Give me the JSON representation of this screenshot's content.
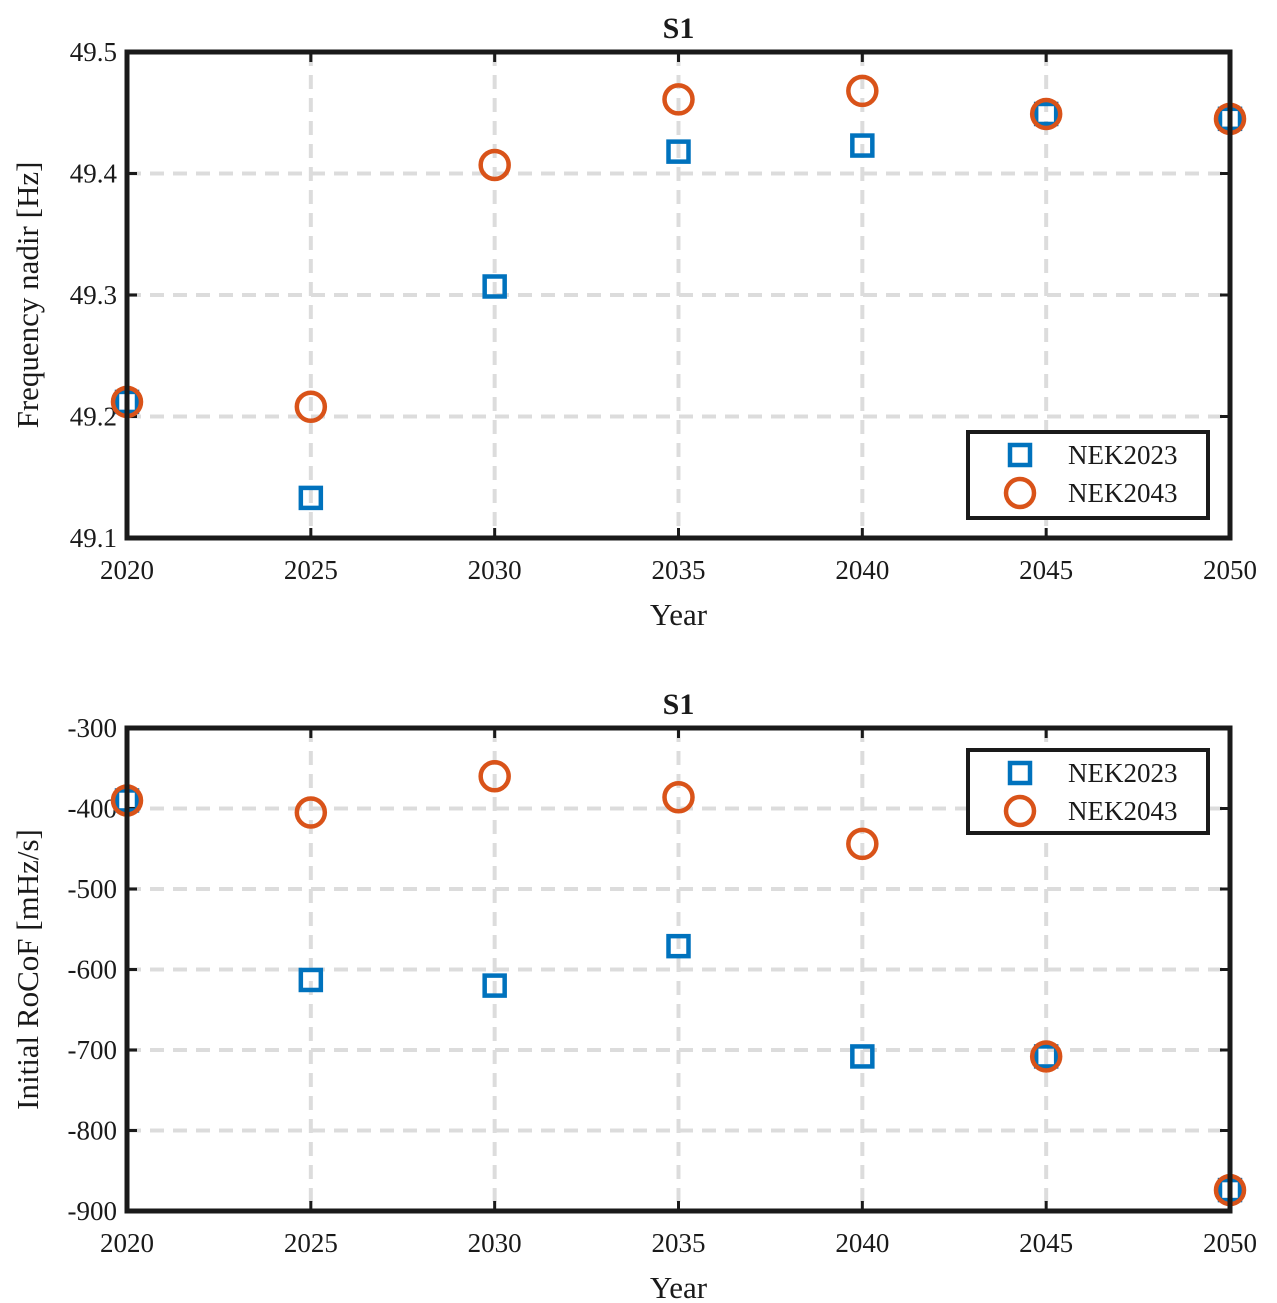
{
  "chart_data": [
    {
      "type": "scatter",
      "title": "S1",
      "xlabel": "Year",
      "ylabel": "Frequency nadir [Hz]",
      "xlim": [
        2020,
        2050
      ],
      "ylim": [
        49.1,
        49.5
      ],
      "xticks": [
        "2020",
        "2025",
        "2030",
        "2035",
        "2040",
        "2045",
        "2050"
      ],
      "yticks": [
        "49.1",
        "49.2",
        "49.3",
        "49.4",
        "49.5"
      ],
      "grid": true,
      "legend_position": "bottom-right",
      "series": [
        {
          "name": "NEK2023",
          "marker": "square",
          "color": "#0072BD",
          "x": [
            2020,
            2025,
            2030,
            2035,
            2040,
            2045,
            2050
          ],
          "y": [
            49.212,
            49.133,
            49.307,
            49.418,
            49.423,
            49.449,
            49.445
          ]
        },
        {
          "name": "NEK2043",
          "marker": "circle",
          "color": "#D95319",
          "x": [
            2020,
            2025,
            2030,
            2035,
            2040,
            2045,
            2050
          ],
          "y": [
            49.212,
            49.208,
            49.407,
            49.461,
            49.468,
            49.449,
            49.445
          ]
        }
      ]
    },
    {
      "type": "scatter",
      "title": "S1",
      "xlabel": "Year",
      "ylabel": "Initial RoCoF [mHz/s]",
      "xlim": [
        2020,
        2050
      ],
      "ylim": [
        -900,
        -300
      ],
      "xticks": [
        "2020",
        "2025",
        "2030",
        "2035",
        "2040",
        "2045",
        "2050"
      ],
      "yticks": [
        "-900",
        "-800",
        "-700",
        "-600",
        "-500",
        "-400",
        "-300"
      ],
      "grid": true,
      "legend_position": "top-right",
      "series": [
        {
          "name": "NEK2023",
          "marker": "square",
          "color": "#0072BD",
          "x": [
            2020,
            2025,
            2030,
            2035,
            2040,
            2045,
            2050
          ],
          "y": [
            -390,
            -613,
            -620,
            -571,
            -708,
            -708,
            -874
          ]
        },
        {
          "name": "NEK2043",
          "marker": "circle",
          "color": "#D95319",
          "x": [
            2020,
            2025,
            2030,
            2035,
            2040,
            2045,
            2050
          ],
          "y": [
            -390,
            -405,
            -360,
            -386,
            -444,
            -708,
            -874
          ]
        }
      ]
    }
  ]
}
